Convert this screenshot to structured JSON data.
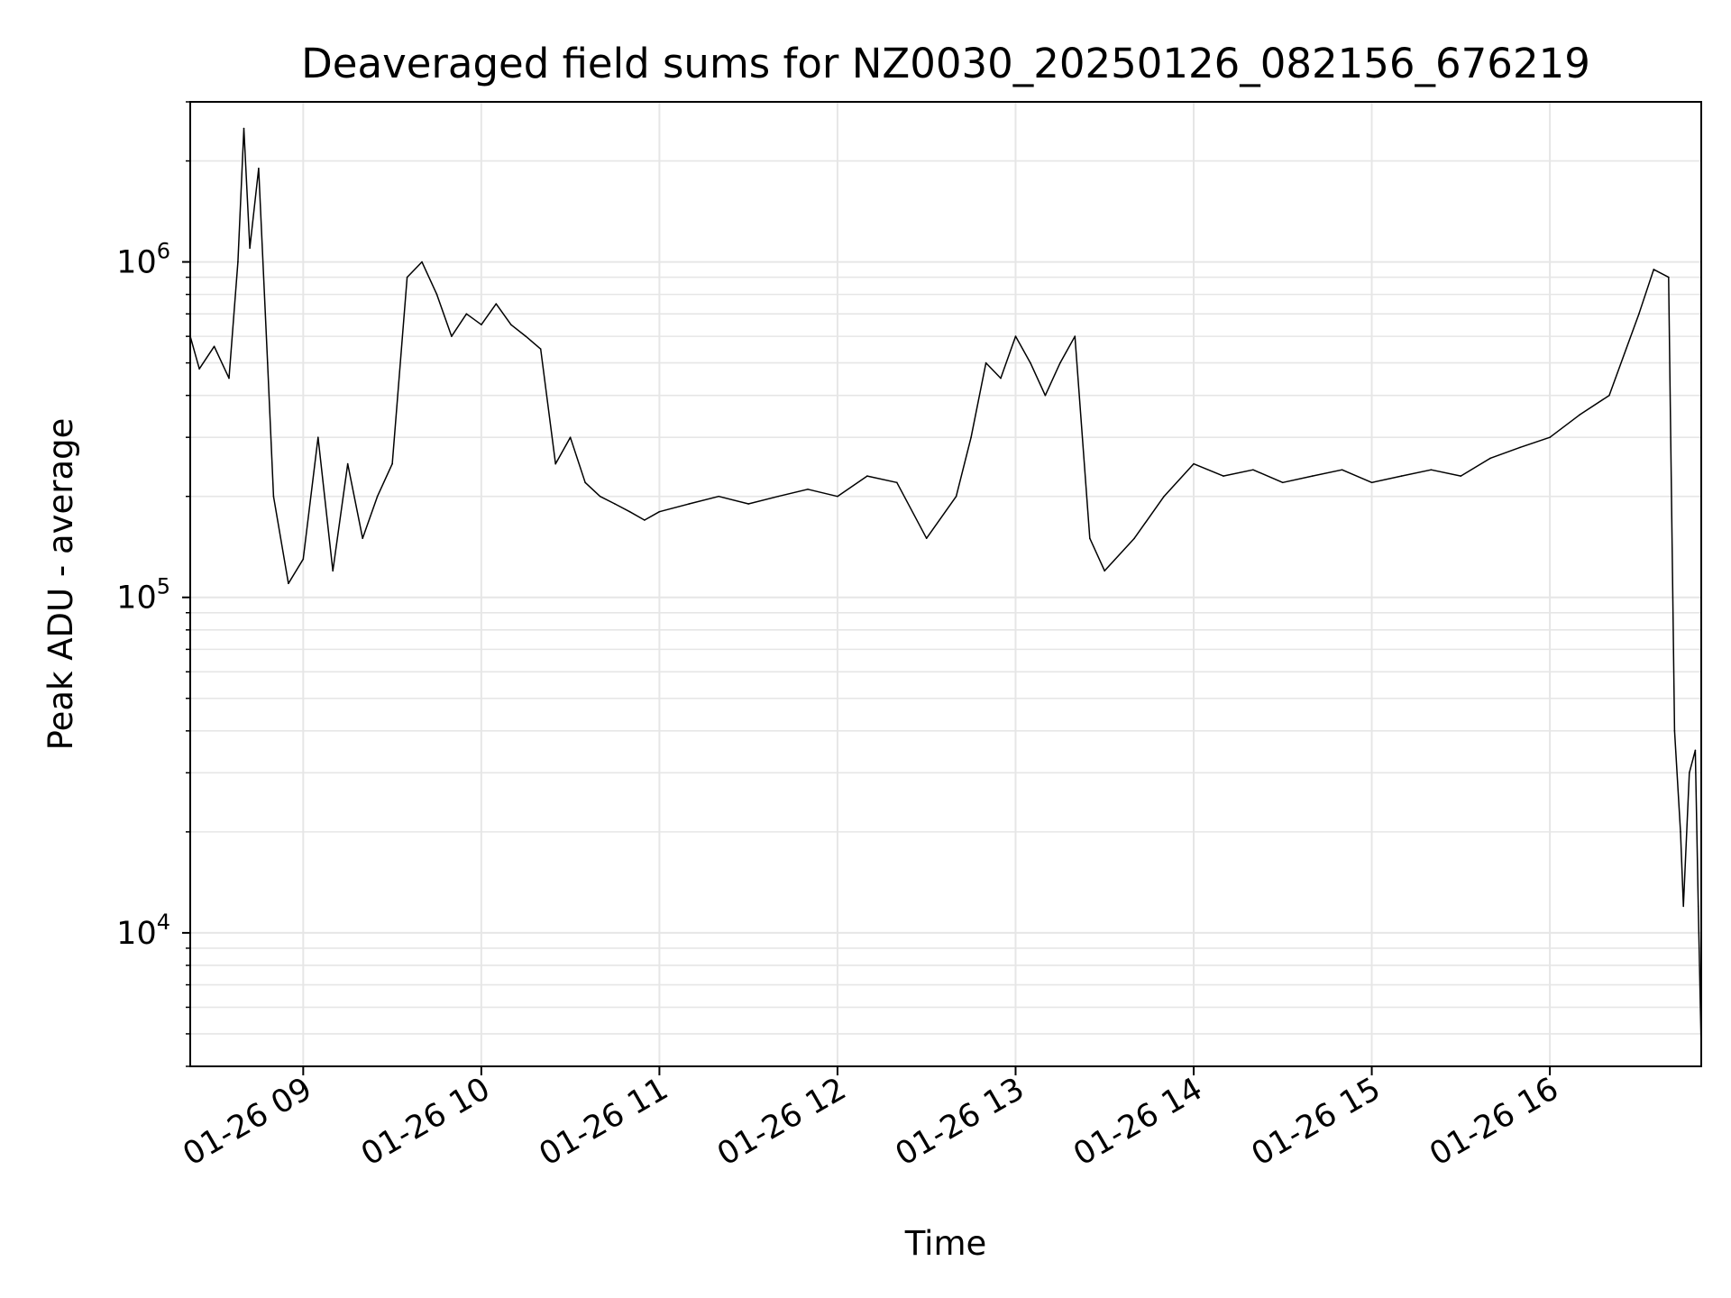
{
  "chart_data": {
    "type": "line",
    "title": "Deaveraged field sums for NZ0030_20250126_082156_676219",
    "xlabel": "Time",
    "ylabel": "Peak ADU - average",
    "x_scale": "time",
    "y_scale": "log",
    "xlim": [
      "2025-01-26T08:21:56",
      "2025-01-26T16:51:00"
    ],
    "ylim": [
      4000,
      3000000
    ],
    "x_tick_labels": [
      "01-26 09",
      "01-26 10",
      "01-26 11",
      "01-26 12",
      "01-26 13",
      "01-26 14",
      "01-26 15",
      "01-26 16"
    ],
    "x_ticks": [
      "2025-01-26T09:00:00",
      "2025-01-26T10:00:00",
      "2025-01-26T11:00:00",
      "2025-01-26T12:00:00",
      "2025-01-26T13:00:00",
      "2025-01-26T14:00:00",
      "2025-01-26T15:00:00",
      "2025-01-26T16:00:00"
    ],
    "y_tick_labels": [
      {
        "base": "10",
        "exp": "4"
      },
      {
        "base": "10",
        "exp": "5"
      },
      {
        "base": "10",
        "exp": "6"
      }
    ],
    "y_ticks": [
      10000,
      100000,
      1000000
    ],
    "grid": true,
    "legend": "none",
    "line_color": "#000000",
    "grid_color": "#e6e6e6",
    "series": [
      {
        "values": [
          [
            "2025-01-26T08:21:56",
            600000
          ],
          [
            "2025-01-26T08:25:00",
            480000
          ],
          [
            "2025-01-26T08:30:00",
            560000
          ],
          [
            "2025-01-26T08:35:00",
            450000
          ],
          [
            "2025-01-26T08:38:00",
            1000000
          ],
          [
            "2025-01-26T08:40:00",
            2500000
          ],
          [
            "2025-01-26T08:42:00",
            1100000
          ],
          [
            "2025-01-26T08:45:00",
            1900000
          ],
          [
            "2025-01-26T08:48:00",
            500000
          ],
          [
            "2025-01-26T08:50:00",
            200000
          ],
          [
            "2025-01-26T08:55:00",
            110000
          ],
          [
            "2025-01-26T09:00:00",
            130000
          ],
          [
            "2025-01-26T09:05:00",
            300000
          ],
          [
            "2025-01-26T09:10:00",
            120000
          ],
          [
            "2025-01-26T09:15:00",
            250000
          ],
          [
            "2025-01-26T09:20:00",
            150000
          ],
          [
            "2025-01-26T09:25:00",
            200000
          ],
          [
            "2025-01-26T09:30:00",
            250000
          ],
          [
            "2025-01-26T09:35:00",
            900000
          ],
          [
            "2025-01-26T09:40:00",
            1000000
          ],
          [
            "2025-01-26T09:45:00",
            800000
          ],
          [
            "2025-01-26T09:50:00",
            600000
          ],
          [
            "2025-01-26T09:55:00",
            700000
          ],
          [
            "2025-01-26T10:00:00",
            650000
          ],
          [
            "2025-01-26T10:05:00",
            750000
          ],
          [
            "2025-01-26T10:10:00",
            650000
          ],
          [
            "2025-01-26T10:15:00",
            600000
          ],
          [
            "2025-01-26T10:20:00",
            550000
          ],
          [
            "2025-01-26T10:25:00",
            250000
          ],
          [
            "2025-01-26T10:30:00",
            300000
          ],
          [
            "2025-01-26T10:35:00",
            220000
          ],
          [
            "2025-01-26T10:40:00",
            200000
          ],
          [
            "2025-01-26T10:45:00",
            190000
          ],
          [
            "2025-01-26T10:50:00",
            180000
          ],
          [
            "2025-01-26T10:55:00",
            170000
          ],
          [
            "2025-01-26T11:00:00",
            180000
          ],
          [
            "2025-01-26T11:10:00",
            190000
          ],
          [
            "2025-01-26T11:20:00",
            200000
          ],
          [
            "2025-01-26T11:30:00",
            190000
          ],
          [
            "2025-01-26T11:40:00",
            200000
          ],
          [
            "2025-01-26T11:50:00",
            210000
          ],
          [
            "2025-01-26T12:00:00",
            200000
          ],
          [
            "2025-01-26T12:10:00",
            230000
          ],
          [
            "2025-01-26T12:20:00",
            220000
          ],
          [
            "2025-01-26T12:30:00",
            150000
          ],
          [
            "2025-01-26T12:40:00",
            200000
          ],
          [
            "2025-01-26T12:45:00",
            300000
          ],
          [
            "2025-01-26T12:50:00",
            500000
          ],
          [
            "2025-01-26T12:55:00",
            450000
          ],
          [
            "2025-01-26T13:00:00",
            600000
          ],
          [
            "2025-01-26T13:05:00",
            500000
          ],
          [
            "2025-01-26T13:10:00",
            400000
          ],
          [
            "2025-01-26T13:15:00",
            500000
          ],
          [
            "2025-01-26T13:20:00",
            600000
          ],
          [
            "2025-01-26T13:25:00",
            150000
          ],
          [
            "2025-01-26T13:30:00",
            120000
          ],
          [
            "2025-01-26T13:40:00",
            150000
          ],
          [
            "2025-01-26T13:50:00",
            200000
          ],
          [
            "2025-01-26T14:00:00",
            250000
          ],
          [
            "2025-01-26T14:10:00",
            230000
          ],
          [
            "2025-01-26T14:20:00",
            240000
          ],
          [
            "2025-01-26T14:30:00",
            220000
          ],
          [
            "2025-01-26T14:40:00",
            230000
          ],
          [
            "2025-01-26T14:50:00",
            240000
          ],
          [
            "2025-01-26T15:00:00",
            220000
          ],
          [
            "2025-01-26T15:10:00",
            230000
          ],
          [
            "2025-01-26T15:20:00",
            240000
          ],
          [
            "2025-01-26T15:30:00",
            230000
          ],
          [
            "2025-01-26T15:40:00",
            260000
          ],
          [
            "2025-01-26T15:50:00",
            280000
          ],
          [
            "2025-01-26T16:00:00",
            300000
          ],
          [
            "2025-01-26T16:10:00",
            350000
          ],
          [
            "2025-01-26T16:20:00",
            400000
          ],
          [
            "2025-01-26T16:30:00",
            700000
          ],
          [
            "2025-01-26T16:35:00",
            950000
          ],
          [
            "2025-01-26T16:40:00",
            900000
          ],
          [
            "2025-01-26T16:42:00",
            40000
          ],
          [
            "2025-01-26T16:44:00",
            20000
          ],
          [
            "2025-01-26T16:45:00",
            12000
          ],
          [
            "2025-01-26T16:47:00",
            30000
          ],
          [
            "2025-01-26T16:49:00",
            35000
          ],
          [
            "2025-01-26T16:50:00",
            12000
          ],
          [
            "2025-01-26T16:51:00",
            4500
          ]
        ]
      }
    ]
  }
}
